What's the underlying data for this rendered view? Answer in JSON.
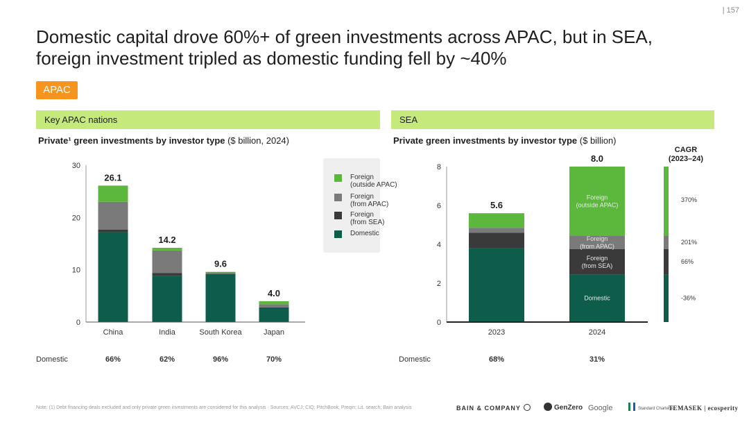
{
  "page_number": "| 157",
  "title": "Domestic capital drove 60%+ of green investments across APAC, but in SEA, foreign investment tripled as domestic funding fell by ~40%",
  "region_tag": "APAC",
  "left_panel": {
    "header": "Key APAC nations",
    "subtitle_bold": "Private¹ green investments by investor type",
    "subtitle_unit": " ($ billion, 2024)"
  },
  "right_panel": {
    "header": "SEA",
    "subtitle_bold": "Private green investments by investor type",
    "subtitle_unit": " ($ billion)",
    "cagr_title": "CAGR (2023–24)"
  },
  "legend": [
    {
      "label": "Foreign (outside APAC)",
      "line1": "Foreign",
      "line2": "(outside APAC)",
      "color": "#5cb83c"
    },
    {
      "label": "Foreign (from APAC)",
      "line1": "Foreign",
      "line2": "(from APAC)",
      "color": "#7a7a7a"
    },
    {
      "label": "Foreign (from SEA)",
      "line1": "Foreign",
      "line2": "(from SEA)",
      "color": "#3a3a3a"
    },
    {
      "label": "Domestic",
      "line1": "Domestic",
      "line2": "",
      "color": "#0e5c4a"
    }
  ],
  "domestic_row": {
    "label": "Domestic",
    "left_values": [
      "66%",
      "62%",
      "96%",
      "70%"
    ],
    "right_values": [
      "68%",
      "31%"
    ]
  },
  "note": "Note: (1) Debt financing deals excluded and only private green investments are considered for this analysis · Sources: AVCJ; CIQ; PitchBook; Preqin; Lit. search; Bain analysis",
  "logos": {
    "bain": "BAIN & COMPANY",
    "genzero": "GenZero",
    "google": "Google",
    "sc": "Standard Chartered",
    "temasek": "TEMASEK | ecosperity"
  },
  "colors": {
    "domestic": "#0e5c4a",
    "from_sea": "#3a3a3a",
    "from_apac": "#7a7a7a",
    "outside_apac": "#5cb83c",
    "header_green": "#c5e97a",
    "tag_orange": "#f7941d"
  },
  "chart_data": [
    {
      "type": "bar",
      "stacked": true,
      "title": "Private¹ green investments by investor type ($ billion, 2024)",
      "categories": [
        "China",
        "India",
        "South Korea",
        "Japan"
      ],
      "ylim": [
        0,
        30
      ],
      "yticks": [
        0,
        10,
        20,
        30
      ],
      "totals": [
        "26.1",
        "14.2",
        "9.6",
        "4.0"
      ],
      "series": [
        {
          "name": "Domestic",
          "values": [
            17.2,
            8.8,
            9.2,
            2.8
          ]
        },
        {
          "name": "Foreign (from SEA)",
          "values": [
            0.5,
            0.6,
            0.0,
            0.0
          ]
        },
        {
          "name": "Foreign (from APAC)",
          "values": [
            5.3,
            4.3,
            0.3,
            0.6
          ]
        },
        {
          "name": "Foreign (outside APAC)",
          "values": [
            3.1,
            0.5,
            0.1,
            0.6
          ]
        }
      ]
    },
    {
      "type": "bar",
      "stacked": true,
      "title": "Private green investments by investor type ($ billion)",
      "categories": [
        "2023",
        "2024"
      ],
      "ylim": [
        0,
        8
      ],
      "yticks": [
        0,
        2,
        4,
        6,
        8
      ],
      "totals": [
        "5.6",
        "8.0"
      ],
      "series": [
        {
          "name": "Domestic",
          "values": [
            3.8,
            2.45
          ],
          "inner_label": "Domestic"
        },
        {
          "name": "Foreign (from SEA)",
          "values": [
            0.8,
            1.3
          ],
          "inner_label": "Foreign (from SEA)"
        },
        {
          "name": "Foreign (from APAC)",
          "values": [
            0.25,
            0.7
          ],
          "inner_label": "Foreign (from APAC)"
        },
        {
          "name": "Foreign (outside APAC)",
          "values": [
            0.75,
            3.55
          ],
          "inner_label": "Foreign (outside APAC)"
        }
      ],
      "cagr": [
        {
          "series": "Foreign (outside APAC)",
          "value": "370%"
        },
        {
          "series": "Foreign (from APAC)",
          "value": "201%"
        },
        {
          "series": "Foreign (from SEA)",
          "value": "66%"
        },
        {
          "series": "Domestic",
          "value": "-36%"
        }
      ]
    }
  ]
}
